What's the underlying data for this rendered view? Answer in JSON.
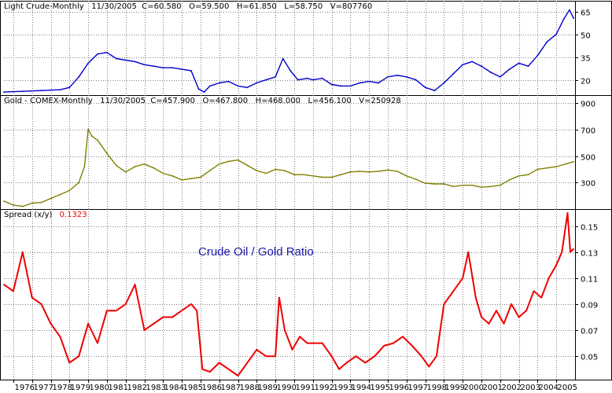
{
  "colors": {
    "crude": "#0000cc",
    "gold": "#808000",
    "spread": "#ee0000",
    "grid": "#808080",
    "border": "#000000",
    "annotation": "#1a1aaa",
    "spread_value": "#ee0000"
  },
  "chart_data": [
    {
      "type": "line",
      "header": "Light Crude-Monthly   11/30/2005  C=60.580   O=59.500   H=61.850   L=58.750   V=807760",
      "series": [
        {
          "name": "Light Crude",
          "color": "#0000cc"
        }
      ],
      "y_ticks": [
        "65",
        "50",
        "35",
        "20"
      ],
      "ylim": [
        10,
        72
      ],
      "grid": "dotted",
      "x": [
        1975.5,
        1976.5,
        1977.5,
        1978.5,
        1979.0,
        1979.5,
        1980.0,
        1980.5,
        1981.0,
        1981.5,
        1982.0,
        1982.5,
        1983.0,
        1983.5,
        1984.0,
        1984.5,
        1985.0,
        1985.5,
        1985.9,
        1986.2,
        1986.5,
        1987.0,
        1987.5,
        1988.0,
        1988.5,
        1989.0,
        1989.5,
        1990.0,
        1990.4,
        1990.8,
        1991.2,
        1991.7,
        1992.0,
        1992.5,
        1993.0,
        1993.5,
        1994.0,
        1994.5,
        1995.0,
        1995.5,
        1996.0,
        1996.5,
        1997.0,
        1997.5,
        1998.0,
        1998.5,
        1999.0,
        1999.5,
        2000.0,
        2000.5,
        2001.0,
        2001.5,
        2002.0,
        2002.5,
        2003.0,
        2003.5,
        2004.0,
        2004.5,
        2005.0,
        2005.4,
        2005.7,
        2005.92
      ],
      "values": [
        12,
        12.5,
        13,
        13.5,
        15,
        22,
        31,
        37,
        38,
        34,
        33,
        32,
        30,
        29,
        28,
        28,
        27,
        26,
        14,
        12,
        16,
        18,
        19,
        16,
        15,
        18,
        20,
        22,
        34,
        26,
        20,
        21,
        20,
        21,
        17,
        16,
        16,
        18,
        19,
        18,
        22,
        23,
        22,
        20,
        15,
        13,
        18,
        24,
        30,
        32,
        29,
        25,
        22,
        27,
        31,
        29,
        36,
        45,
        50,
        60,
        66,
        60.58
      ]
    },
    {
      "type": "line",
      "header": "Gold - COMEX-Monthly   11/30/2005  C=457.900   O=467.800   H=468.000   L=456.100   V=250928",
      "series": [
        {
          "name": "Gold",
          "color": "#808000"
        }
      ],
      "y_ticks": [
        "900",
        "700",
        "500",
        "300"
      ],
      "ylim": [
        100,
        960
      ],
      "grid": "dotted",
      "x": [
        1975.5,
        1976.0,
        1976.5,
        1977.0,
        1977.5,
        1978.0,
        1978.5,
        1979.0,
        1979.5,
        1979.8,
        1980.0,
        1980.2,
        1980.5,
        1981.0,
        1981.5,
        1982.0,
        1982.5,
        1983.0,
        1983.5,
        1984.0,
        1984.5,
        1985.0,
        1985.5,
        1986.0,
        1986.5,
        1987.0,
        1987.5,
        1988.0,
        1988.5,
        1989.0,
        1989.5,
        1990.0,
        1990.5,
        1991.0,
        1991.5,
        1992.0,
        1992.5,
        1993.0,
        1993.5,
        1994.0,
        1994.5,
        1995.0,
        1995.5,
        1996.0,
        1996.5,
        1997.0,
        1997.5,
        1998.0,
        1998.5,
        1999.0,
        1999.5,
        2000.0,
        2000.5,
        2001.0,
        2001.5,
        2002.0,
        2002.5,
        2003.0,
        2003.5,
        2004.0,
        2004.5,
        2005.0,
        2005.5,
        2005.92
      ],
      "values": [
        160,
        130,
        120,
        145,
        150,
        180,
        210,
        240,
        300,
        420,
        700,
        650,
        620,
        520,
        430,
        380,
        420,
        440,
        410,
        370,
        350,
        320,
        330,
        340,
        390,
        440,
        460,
        470,
        430,
        390,
        370,
        400,
        390,
        360,
        360,
        350,
        340,
        340,
        360,
        380,
        385,
        380,
        385,
        395,
        385,
        350,
        325,
        295,
        290,
        290,
        270,
        280,
        280,
        265,
        270,
        280,
        320,
        350,
        360,
        400,
        410,
        420,
        440,
        457.9
      ]
    },
    {
      "type": "line",
      "header_label": "Spread (x/y)",
      "header_value": "0.1323",
      "annotation": "Crude Oil / Gold Ratio",
      "series": [
        {
          "name": "Spread (x/y)",
          "color": "#ee0000"
        }
      ],
      "y_ticks": [
        "0.15",
        "0.13",
        "0.11",
        "0.09",
        "0.07",
        "0.05"
      ],
      "ylim": [
        0.032,
        0.163
      ],
      "grid": "dotted",
      "x": [
        1975.5,
        1976.0,
        1976.5,
        1977.0,
        1977.5,
        1978.0,
        1978.5,
        1979.0,
        1979.5,
        1980.0,
        1980.5,
        1981.0,
        1981.5,
        1982.0,
        1982.5,
        1983.0,
        1983.5,
        1984.0,
        1984.5,
        1985.0,
        1985.5,
        1985.8,
        1986.1,
        1986.5,
        1987.0,
        1987.5,
        1988.0,
        1988.5,
        1989.0,
        1989.5,
        1990.0,
        1990.2,
        1990.5,
        1990.9,
        1991.3,
        1991.7,
        1992.0,
        1992.5,
        1993.0,
        1993.4,
        1993.8,
        1994.3,
        1994.8,
        1995.3,
        1995.8,
        1996.3,
        1996.8,
        1997.3,
        1997.8,
        1998.2,
        1998.6,
        1999.0,
        1999.5,
        2000.0,
        2000.3,
        2000.7,
        2001.0,
        2001.4,
        2001.8,
        2002.2,
        2002.6,
        2003.0,
        2003.4,
        2003.8,
        2004.2,
        2004.6,
        2005.0,
        2005.3,
        2005.6,
        2005.75,
        2005.92
      ],
      "values": [
        0.105,
        0.1,
        0.13,
        0.095,
        0.09,
        0.075,
        0.065,
        0.045,
        0.05,
        0.075,
        0.06,
        0.085,
        0.085,
        0.09,
        0.105,
        0.07,
        0.075,
        0.08,
        0.08,
        0.085,
        0.09,
        0.085,
        0.04,
        0.038,
        0.045,
        0.04,
        0.035,
        0.045,
        0.055,
        0.05,
        0.05,
        0.095,
        0.07,
        0.055,
        0.065,
        0.06,
        0.06,
        0.06,
        0.05,
        0.04,
        0.045,
        0.05,
        0.045,
        0.05,
        0.058,
        0.06,
        0.065,
        0.058,
        0.05,
        0.042,
        0.05,
        0.09,
        0.1,
        0.11,
        0.13,
        0.095,
        0.08,
        0.075,
        0.085,
        0.075,
        0.09,
        0.08,
        0.085,
        0.1,
        0.095,
        0.11,
        0.12,
        0.13,
        0.16,
        0.13,
        0.1323
      ]
    }
  ],
  "x_axis": {
    "range": [
      1975.5,
      2006.0
    ],
    "tick_labels": [
      "1976",
      "1977",
      "1978",
      "1979",
      "1980",
      "1981",
      "1982",
      "1983",
      "1984",
      "1985",
      "1986",
      "1987",
      "1988",
      "1989",
      "1990",
      "1991",
      "1992",
      "1993",
      "1994",
      "1995",
      "1996",
      "1997",
      "1998",
      "1999",
      "2000",
      "2001",
      "2002",
      "2003",
      "2004",
      "2005"
    ]
  }
}
